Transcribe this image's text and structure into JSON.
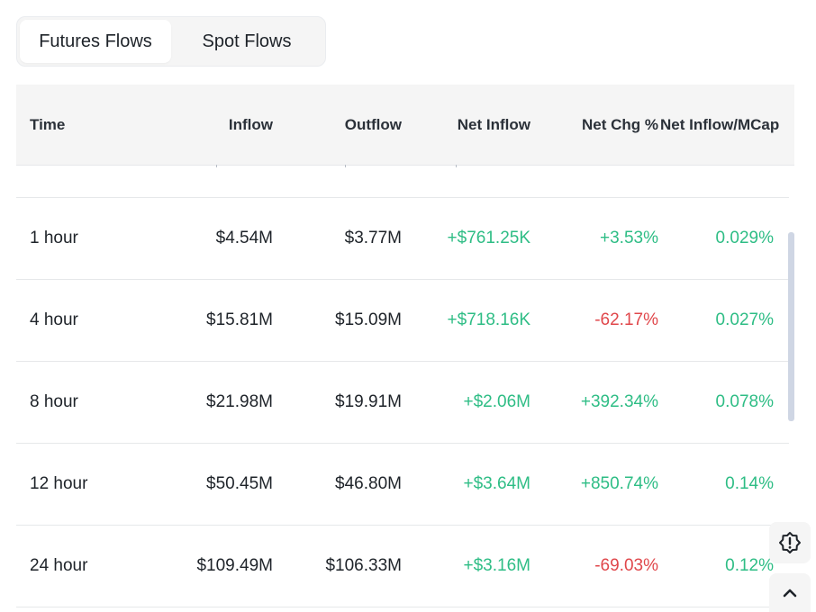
{
  "tabs": [
    {
      "label": "Futures Flows",
      "active": true
    },
    {
      "label": "Spot Flows",
      "active": false
    }
  ],
  "table": {
    "headers": {
      "time": "Time",
      "inflow": "Inflow",
      "outflow": "Outflow",
      "net_inflow": "Net Inflow",
      "net_chg": "Net Chg %",
      "net_inflow_mcap": "Net Inflow/MCap"
    },
    "rows": [
      {
        "time": "1 hour",
        "inflow": "$4.54M",
        "outflow": "$3.77M",
        "net_inflow": "+$761.25K",
        "net_chg": "+3.53%",
        "net_inflow_mcap": "0.029%"
      },
      {
        "time": "4 hour",
        "inflow": "$15.81M",
        "outflow": "$15.09M",
        "net_inflow": "+$718.16K",
        "net_chg": "-62.17%",
        "net_inflow_mcap": "0.027%"
      },
      {
        "time": "8 hour",
        "inflow": "$21.98M",
        "outflow": "$19.91M",
        "net_inflow": "+$2.06M",
        "net_chg": "+392.34%",
        "net_inflow_mcap": "0.078%"
      },
      {
        "time": "12 hour",
        "inflow": "$50.45M",
        "outflow": "$46.80M",
        "net_inflow": "+$3.64M",
        "net_chg": "+850.74%",
        "net_inflow_mcap": "0.14%"
      },
      {
        "time": "24 hour",
        "inflow": "$109.49M",
        "outflow": "$106.33M",
        "net_inflow": "+$3.16M",
        "net_chg": "-69.03%",
        "net_inflow_mcap": "0.12%"
      }
    ]
  },
  "colors": {
    "positive": "#2ebd85",
    "negative": "#e0474b",
    "header_bg": "#f5f5f5"
  },
  "icons": {
    "feedback": "feedback-alert-icon",
    "back_to_top": "chevron-up-icon"
  }
}
